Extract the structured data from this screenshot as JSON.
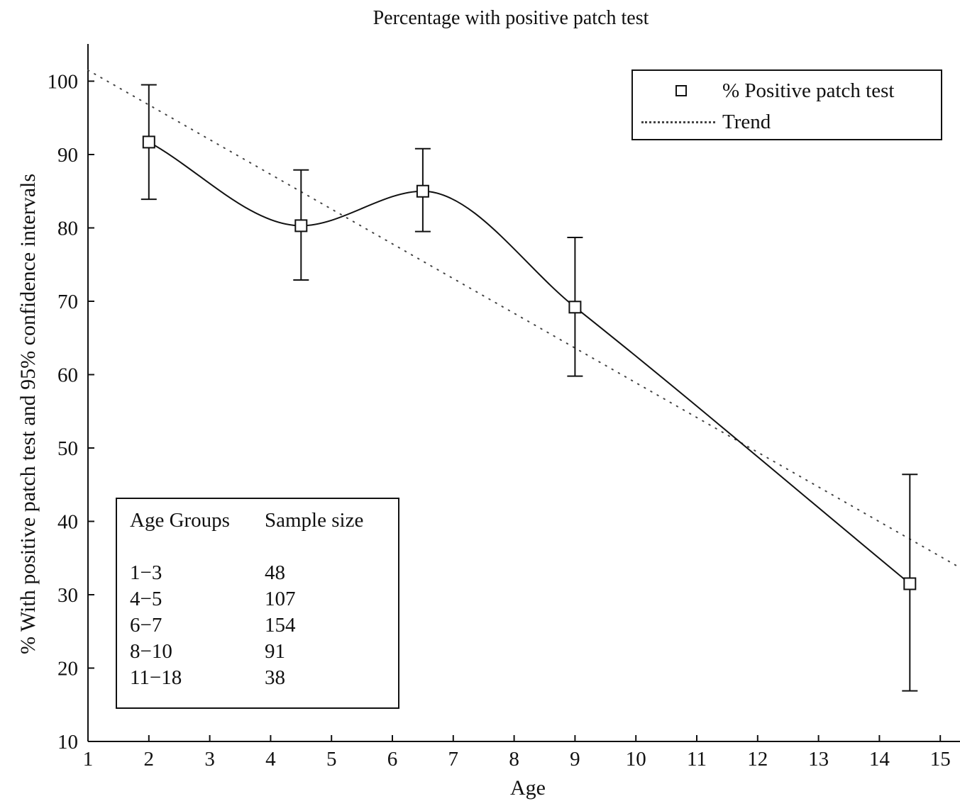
{
  "chart_data": {
    "type": "line",
    "title": "Percentage with positive patch test",
    "xlabel": "Age",
    "ylabel": "% With positive patch test and 95% confidence intervals",
    "xlim": [
      1,
      15.3
    ],
    "ylim": [
      10,
      105
    ],
    "x_ticks": [
      1,
      2,
      3,
      4,
      5,
      6,
      7,
      8,
      9,
      10,
      11,
      12,
      13,
      14,
      15
    ],
    "y_ticks": [
      10,
      20,
      30,
      40,
      50,
      60,
      70,
      80,
      90,
      100
    ],
    "grid": false,
    "legend_position": "top-right",
    "series": [
      {
        "name": "% Positive patch test",
        "style": "solid-with-square-markers",
        "x": [
          2,
          4.5,
          6.5,
          9,
          14.5
        ],
        "y": [
          91.7,
          80.3,
          85.0,
          69.2,
          31.5
        ],
        "ci_lower": [
          83.9,
          72.9,
          79.5,
          59.8,
          16.9
        ],
        "ci_upper": [
          99.5,
          87.9,
          90.8,
          78.7,
          46.4
        ]
      },
      {
        "name": "Trend",
        "style": "dotted",
        "x": [
          1,
          15.3
        ],
        "y": [
          101.5,
          33.8
        ]
      }
    ]
  },
  "table": {
    "headers": [
      "Age Groups",
      "Sample size"
    ],
    "rows": [
      [
        "1−3",
        "48"
      ],
      [
        "4−5",
        "107"
      ],
      [
        "6−7",
        "154"
      ],
      [
        "8−10",
        "91"
      ],
      [
        "11−18",
        "38"
      ]
    ]
  },
  "colors": {
    "line": "#111111",
    "trend": "#444444",
    "background": "#ffffff"
  }
}
